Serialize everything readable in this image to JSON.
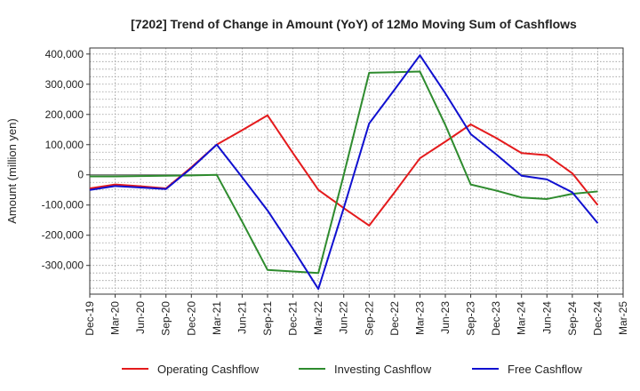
{
  "chart_data": {
    "type": "line",
    "title": "[7202]  Trend of Change in Amount (YoY) of 12Mo Moving Sum of Cashflows",
    "xlabel": "",
    "ylabel": "Amount (million yen)",
    "ylim": [
      -395000,
      420000
    ],
    "yticks": [
      400000,
      300000,
      200000,
      100000,
      0,
      -100000,
      -200000,
      -300000
    ],
    "ytick_labels": [
      "400,000",
      "300,000",
      "200,000",
      "100,000",
      "0",
      "-100,000",
      "-200,000",
      "-300,000"
    ],
    "categories": [
      "Dec-19",
      "Mar-20",
      "Jun-20",
      "Sep-20",
      "Dec-20",
      "Mar-21",
      "Jun-21",
      "Sep-21",
      "Dec-21",
      "Mar-22",
      "Jun-22",
      "Sep-22",
      "Dec-22",
      "Mar-23",
      "Jun-23",
      "Sep-23",
      "Dec-23",
      "Mar-24",
      "Jun-24",
      "Sep-24",
      "Dec-24",
      "Mar-25"
    ],
    "grid": true,
    "legend_position": "bottom",
    "series": [
      {
        "name": "Operating Cashflow",
        "color": "#e41a1c",
        "values": [
          -45000,
          -32000,
          -38000,
          -45000,
          25000,
          100000,
          148000,
          197000,
          72000,
          -50000,
          -110000,
          -168000,
          -58000,
          55000,
          110000,
          167000,
          122000,
          72000,
          65000,
          5000,
          -100000,
          null
        ]
      },
      {
        "name": "Investing Cashflow",
        "color": "#2e8b2e",
        "values": [
          -5000,
          -5000,
          -4000,
          -3000,
          -2000,
          0,
          -155000,
          -315000,
          -320000,
          -325000,
          0,
          338000,
          340000,
          342000,
          165000,
          -32000,
          -52000,
          -75000,
          -80000,
          -63000,
          -55000,
          null
        ]
      },
      {
        "name": "Free Cashflow",
        "color": "#1010d0",
        "values": [
          -50000,
          -37000,
          -42000,
          -47000,
          22000,
          100000,
          -8000,
          -118000,
          -245000,
          -378000,
          -110000,
          170000,
          282000,
          396000,
          270000,
          135000,
          68000,
          -3000,
          -15000,
          -58000,
          -160000,
          null
        ]
      }
    ]
  }
}
